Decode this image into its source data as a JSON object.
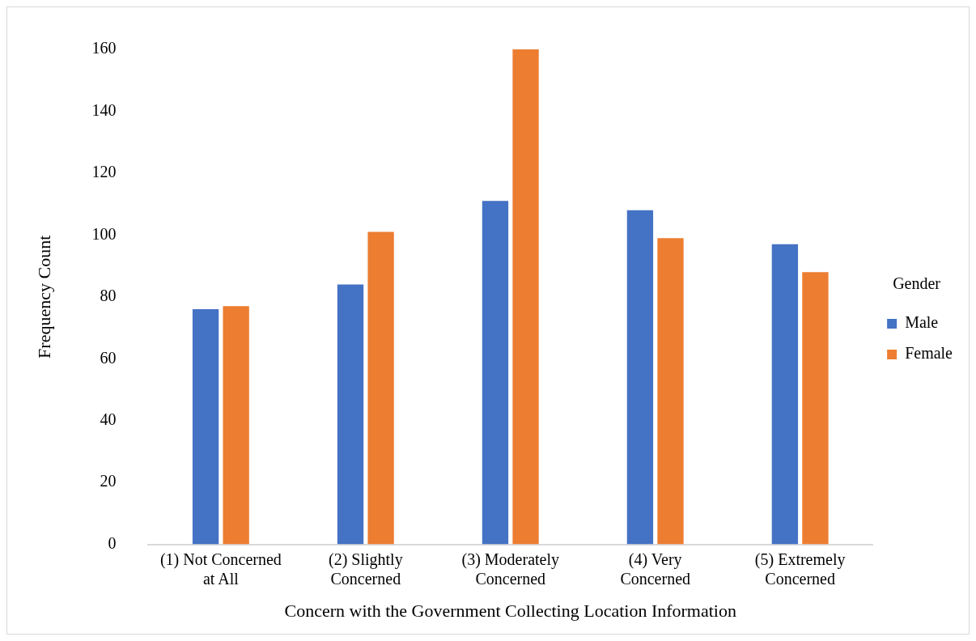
{
  "chart_data": {
    "type": "bar",
    "xlabel": "Concern with the Government Collecting Location Information",
    "ylabel": "Frequency Count",
    "legend_title": "Gender",
    "categories": [
      "(1) Not Concerned at All",
      "(2) Slightly Concerned",
      "(3) Moderately Concerned",
      "(4) Very Concerned",
      "(5) Extremely Concerned"
    ],
    "series": [
      {
        "name": "Male",
        "color": "#4472c4",
        "values": [
          76,
          84,
          111,
          108,
          97
        ]
      },
      {
        "name": "Female",
        "color": "#ed7d31",
        "values": [
          77,
          101,
          160,
          99,
          88
        ]
      }
    ],
    "ylim": [
      0,
      160
    ],
    "yticks": [
      0,
      20,
      40,
      60,
      80,
      100,
      120,
      140,
      160
    ],
    "grid": false,
    "legend": "right"
  }
}
